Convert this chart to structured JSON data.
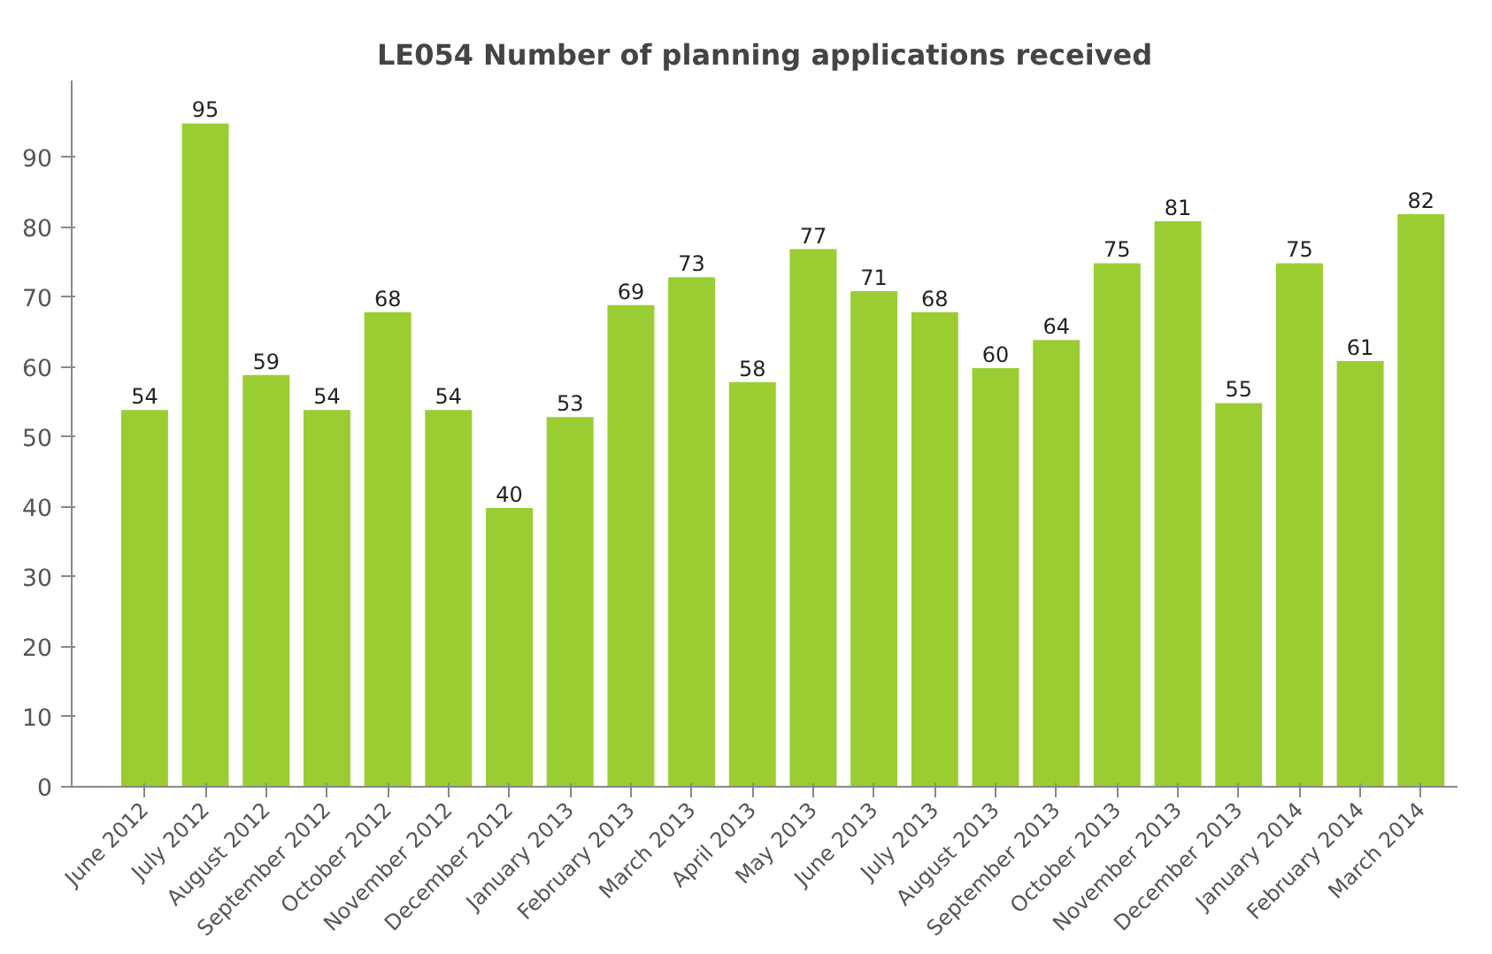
{
  "chart_data": {
    "type": "bar",
    "title": "LE054 Number of planning applications received",
    "categories": [
      "June 2012",
      "July 2012",
      "August 2012",
      "September 2012",
      "October 2012",
      "November 2012",
      "December 2012",
      "January 2013",
      "February 2013",
      "March 2013",
      "April 2013",
      "May 2013",
      "June 2013",
      "July 2013",
      "August 2013",
      "September 2013",
      "October 2013",
      "November 2013",
      "December 2013",
      "January 2014",
      "February 2014",
      "March 2014"
    ],
    "values": [
      54,
      95,
      59,
      54,
      68,
      54,
      40,
      53,
      69,
      73,
      58,
      77,
      71,
      68,
      60,
      64,
      75,
      81,
      55,
      75,
      61,
      82
    ],
    "color": "#9acd32",
    "ylim": [
      0,
      101
    ],
    "yticks": [
      0,
      10,
      20,
      30,
      40,
      50,
      60,
      70,
      80,
      90
    ],
    "grid": false,
    "data_labels": true
  }
}
